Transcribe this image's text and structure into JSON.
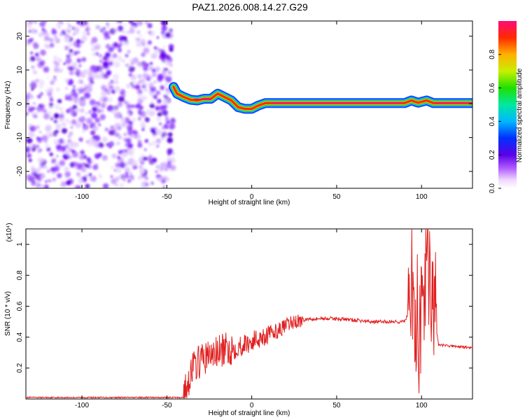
{
  "title": "PAZ1.2026.008.14.27.G29",
  "chart_data": [
    {
      "type": "heatmap",
      "xlabel": "Height of straight line (km)",
      "ylabel": "Frequency (Hz)",
      "xlim": [
        -133,
        130
      ],
      "ylim": [
        -25,
        24.5
      ],
      "xticks": [
        "-100",
        "-50",
        "0",
        "50",
        "100"
      ],
      "xtick_values": [
        -100,
        -50,
        0,
        50,
        100
      ],
      "yticks": [
        "20",
        "10",
        "0",
        "-10",
        "-20"
      ],
      "ytick_values": [
        20,
        10,
        0,
        -10,
        -20
      ],
      "noise_region_x": [
        -133,
        -46
      ],
      "ridge": [
        {
          "x": -46,
          "y": 5
        },
        {
          "x": -44,
          "y": 3
        },
        {
          "x": -40,
          "y": 2
        },
        {
          "x": -36,
          "y": 1.2
        },
        {
          "x": -32,
          "y": 1
        },
        {
          "x": -28,
          "y": 1.5
        },
        {
          "x": -24,
          "y": 1.5
        },
        {
          "x": -20,
          "y": 3
        },
        {
          "x": -16,
          "y": 2
        },
        {
          "x": -12,
          "y": 1
        },
        {
          "x": -8,
          "y": -1
        },
        {
          "x": -4,
          "y": -1.5
        },
        {
          "x": 0,
          "y": -1.5
        },
        {
          "x": 4,
          "y": -0.5
        },
        {
          "x": 8,
          "y": 0.2
        },
        {
          "x": 12,
          "y": 0.2
        },
        {
          "x": 50,
          "y": 0.2
        },
        {
          "x": 90,
          "y": 0.2
        },
        {
          "x": 94,
          "y": 1
        },
        {
          "x": 98,
          "y": 0.3
        },
        {
          "x": 103,
          "y": 1
        },
        {
          "x": 107,
          "y": 0.2
        },
        {
          "x": 130,
          "y": 0.2
        }
      ],
      "colorbar": {
        "label": "Normalized spectral amplitude",
        "range": [
          0,
          1
        ],
        "ticks": [
          "0.0",
          "0.2",
          "0.4",
          "0.6",
          "0.8"
        ],
        "tick_values": [
          0.0,
          0.2,
          0.4,
          0.6,
          0.8
        ]
      }
    },
    {
      "type": "line",
      "xlabel": "Height of straight line (km)",
      "ylabel": "SNR (10 * v/v)",
      "y_multiplier": "(x10⁴)",
      "xlim": [
        -133,
        130
      ],
      "ylim": [
        0,
        1.1
      ],
      "xticks": [
        "-100",
        "-50",
        "0",
        "50",
        "100"
      ],
      "xtick_values": [
        -100,
        -50,
        0,
        50,
        100
      ],
      "yticks": [
        "0.2",
        "0.4",
        "0.6",
        "0.8",
        "1"
      ],
      "ytick_values": [
        0.2,
        0.4,
        0.6,
        0.8,
        1.0
      ],
      "series": [
        {
          "name": "SNR",
          "color": "#e02020",
          "x": [
            -133,
            -40,
            -38,
            -35,
            -30,
            -25,
            -20,
            -15,
            -10,
            -5,
            0,
            5,
            10,
            15,
            20,
            25,
            30,
            35,
            40,
            50,
            60,
            70,
            80,
            90,
            94,
            96,
            98,
            100,
            102,
            104,
            106,
            108,
            110,
            120,
            130
          ],
          "values": [
            0.01,
            0.01,
            0.1,
            0.2,
            0.25,
            0.28,
            0.3,
            0.32,
            0.33,
            0.35,
            0.37,
            0.4,
            0.42,
            0.44,
            0.47,
            0.5,
            0.51,
            0.52,
            0.52,
            0.52,
            0.51,
            0.5,
            0.5,
            0.5,
            0.6,
            0.4,
            0.3,
            0.55,
            0.75,
            0.8,
            0.65,
            0.5,
            0.35,
            0.34,
            0.33
          ]
        }
      ]
    }
  ]
}
